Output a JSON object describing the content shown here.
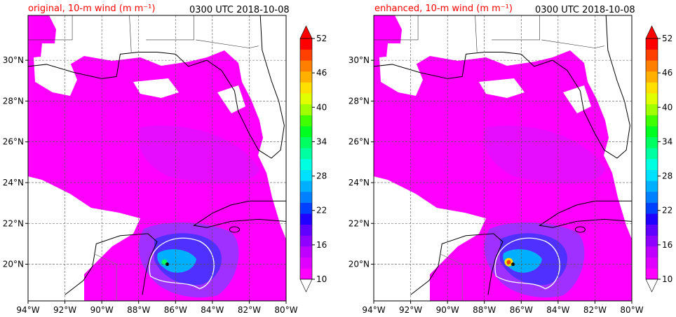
{
  "panels": [
    {
      "title_left": "original, 10-m wind (m m⁻¹)",
      "title_right": "0300 UTC 2018-10-08"
    },
    {
      "title_left": "enhanced, 10-m wind (m m⁻¹)",
      "title_right": "0300 UTC 2018-10-08"
    }
  ],
  "axes": {
    "x_ticks": [
      "94°W",
      "92°W",
      "90°W",
      "88°W",
      "86°W",
      "84°W",
      "82°W",
      "80°W"
    ],
    "y_ticks": [
      "30°N",
      "28°N",
      "26°N",
      "24°N",
      "22°N",
      "20°N"
    ],
    "lon_range": [
      -94,
      -80
    ],
    "lat_range": [
      18.2,
      32.2
    ],
    "grid": true
  },
  "colorbar": {
    "ticks": [
      "52",
      "46",
      "40",
      "34",
      "28",
      "22",
      "16",
      "10"
    ],
    "levels": [
      10,
      12,
      14,
      16,
      18,
      20,
      22,
      24,
      26,
      28,
      30,
      32,
      34,
      36,
      38,
      40,
      42,
      44,
      46,
      48,
      50,
      52
    ],
    "colors": [
      "#ff00ff",
      "#e000ff",
      "#c000ff",
      "#9000ff",
      "#6000ff",
      "#2000ff",
      "#0040ff",
      "#0080ff",
      "#00b0ff",
      "#00e0ff",
      "#00ffe0",
      "#00ffa0",
      "#00ff60",
      "#00ff20",
      "#40ff00",
      "#a0ff00",
      "#e0ff00",
      "#ffe000",
      "#ffb000",
      "#ff8000",
      "#ff4000",
      "#ff0000"
    ],
    "extend": "both"
  },
  "colors": {
    "wind_base": "#ff00ff",
    "wind_mid": "#b020ff",
    "wind_high": "#2040ff",
    "coast": "#000000",
    "grid": "#555555",
    "title_red": "#ff0000"
  }
}
